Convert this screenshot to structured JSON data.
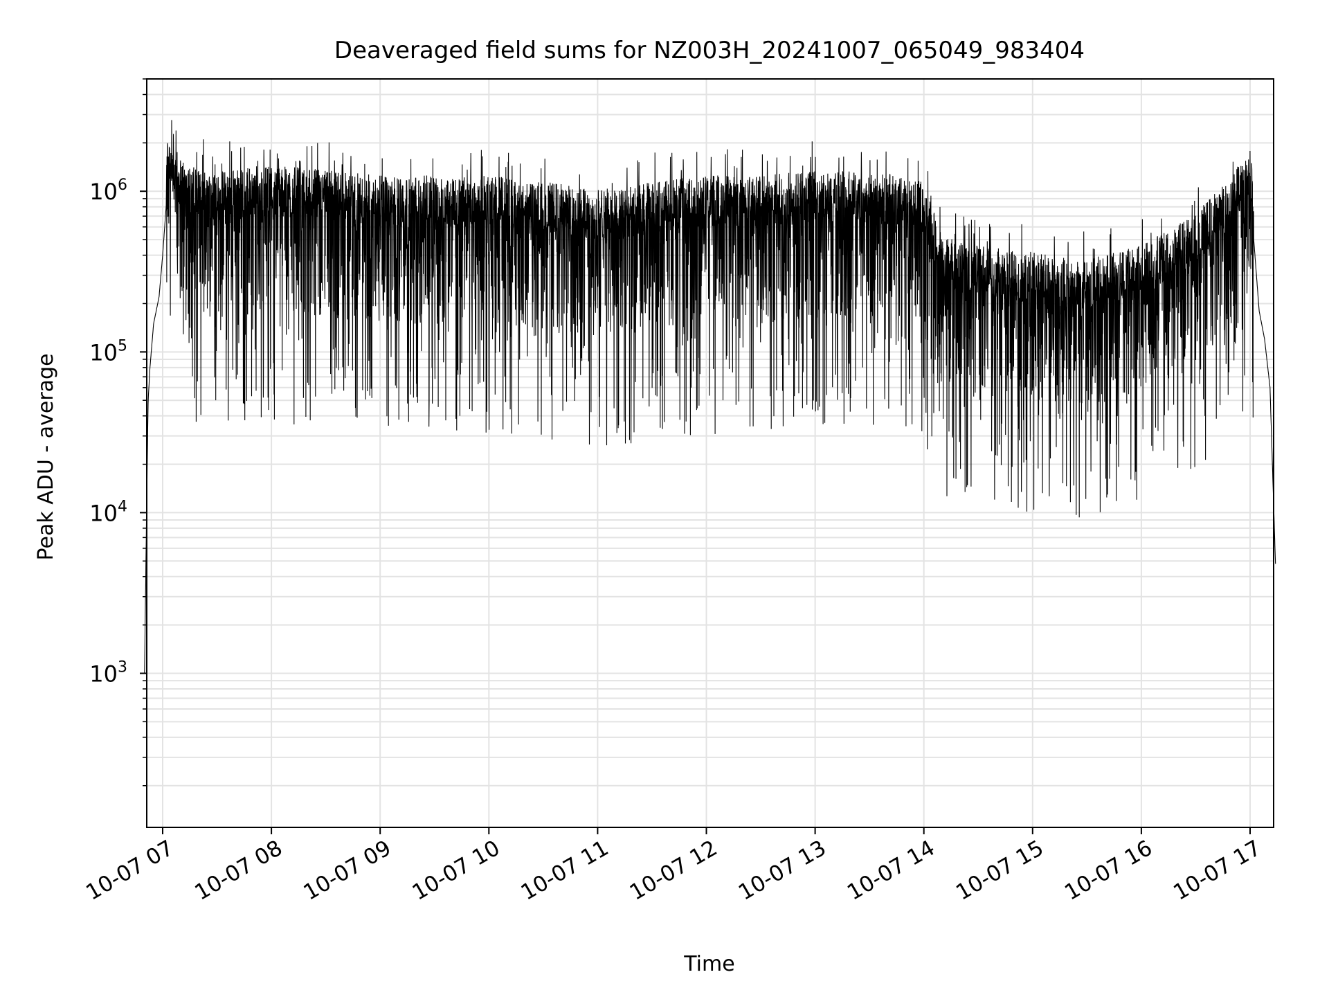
{
  "chart_data": {
    "type": "line",
    "title": "Deaveraged field sums for NZ003H_20241007_065049_983404",
    "xlabel": "Time",
    "ylabel": "Peak ADU - average",
    "yscale": "log",
    "ylim": [
      110,
      5000000
    ],
    "grid": true,
    "line_color": "#000000",
    "grid_color": "#e3e3e3",
    "x_ticks": [
      {
        "label": "10-07 07",
        "value": "2024-10-07 07:00"
      },
      {
        "label": "10-07 08",
        "value": "2024-10-07 08:00"
      },
      {
        "label": "10-07 09",
        "value": "2024-10-07 09:00"
      },
      {
        "label": "10-07 10",
        "value": "2024-10-07 10:00"
      },
      {
        "label": "10-07 11",
        "value": "2024-10-07 11:00"
      },
      {
        "label": "10-07 12",
        "value": "2024-10-07 12:00"
      },
      {
        "label": "10-07 13",
        "value": "2024-10-07 13:00"
      },
      {
        "label": "10-07 14",
        "value": "2024-10-07 14:00"
      },
      {
        "label": "10-07 15",
        "value": "2024-10-07 15:00"
      },
      {
        "label": "10-07 16",
        "value": "2024-10-07 16:00"
      },
      {
        "label": "10-07 17",
        "value": "2024-10-07 17:00"
      }
    ],
    "y_ticks": [
      {
        "base": "10",
        "exp": "3",
        "value": 1000
      },
      {
        "base": "10",
        "exp": "4",
        "value": 10000
      },
      {
        "base": "10",
        "exp": "5",
        "value": 100000
      },
      {
        "base": "10",
        "exp": "6",
        "value": 1000000
      }
    ],
    "series": [
      {
        "x": [
          "2024-10-07 06:50",
          "2024-10-07 06:51",
          "2024-10-07 06:52",
          "2024-10-07 06:53",
          "2024-10-07 06:55",
          "2024-10-07 06:58",
          "2024-10-07 07:00",
          "2024-10-07 07:03",
          "2024-10-07 07:06",
          "2024-10-07 07:10",
          "2024-10-07 07:15",
          "2024-10-07 07:30",
          "2024-10-07 08:00",
          "2024-10-07 08:30",
          "2024-10-07 09:00",
          "2024-10-07 09:30",
          "2024-10-07 10:00",
          "2024-10-07 10:30",
          "2024-10-07 11:00",
          "2024-10-07 11:15",
          "2024-10-07 11:30",
          "2024-10-07 12:00",
          "2024-10-07 12:30",
          "2024-10-07 13:00",
          "2024-10-07 13:30",
          "2024-10-07 14:00",
          "2024-10-07 14:10",
          "2024-10-07 14:30",
          "2024-10-07 15:00",
          "2024-10-07 15:30",
          "2024-10-07 16:00",
          "2024-10-07 16:30",
          "2024-10-07 16:50",
          "2024-10-07 17:00",
          "2024-10-07 17:05",
          "2024-10-07 17:08",
          "2024-10-07 17:11",
          "2024-10-07 17:14"
        ],
        "y": [
          1000,
          8000,
          50000,
          80000,
          150000,
          220000,
          400000,
          1200000,
          900000,
          800000,
          700000,
          650000,
          700000,
          650000,
          600000,
          600000,
          600000,
          550000,
          500000,
          500000,
          550000,
          600000,
          600000,
          650000,
          650000,
          550000,
          250000,
          220000,
          200000,
          180000,
          220000,
          350000,
          600000,
          1000000,
          180000,
          120000,
          60000,
          4800
        ]
      }
    ]
  }
}
